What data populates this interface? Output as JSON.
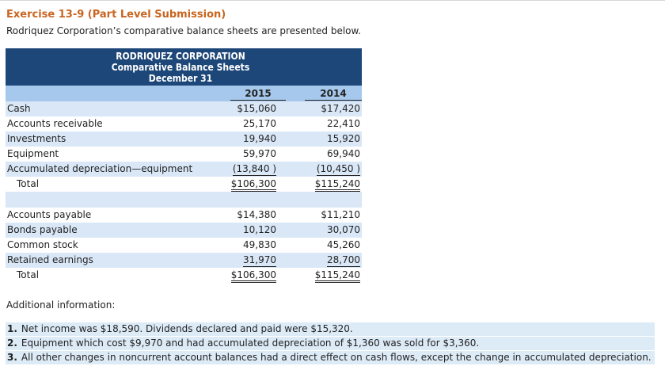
{
  "exercise_title": "Exercise 13-9 (Part Level Submission)",
  "intro": "Rodriquez Corporation’s comparative balance sheets are presented below.",
  "balance_sheet": {
    "company": "RODRIQUEZ CORPORATION",
    "statement": "Comparative Balance Sheets",
    "date": "December 31",
    "years": [
      "2015",
      "2014"
    ],
    "assets": [
      {
        "label": "Cash",
        "v2015": "$15,060",
        "v2014": "$17,420"
      },
      {
        "label": "Accounts receivable",
        "v2015": "25,170",
        "v2014": "22,410"
      },
      {
        "label": "Investments",
        "v2015": "19,940",
        "v2014": "15,920"
      },
      {
        "label": "Equipment",
        "v2015": "59,970",
        "v2014": "69,940"
      },
      {
        "label": "Accumulated depreciation—equipment",
        "v2015": "(13,840 )",
        "v2014": "(10,450 )"
      }
    ],
    "assets_total": {
      "label": "Total",
      "v2015": "$106,300",
      "v2014": "$115,240"
    },
    "liabilities": [
      {
        "label": "Accounts payable",
        "v2015": "$14,380",
        "v2014": "$11,210"
      },
      {
        "label": "Bonds payable",
        "v2015": "10,120",
        "v2014": "30,070"
      },
      {
        "label": "Common stock",
        "v2015": "49,830",
        "v2014": "45,260"
      },
      {
        "label": "Retained earnings",
        "v2015": "31,970",
        "v2014": "28,700"
      }
    ],
    "liabilities_total": {
      "label": "Total",
      "v2015": "$106,300",
      "v2014": "$115,240"
    }
  },
  "additional_heading": "Additional information:",
  "notes": [
    {
      "num": "1.",
      "text": "Net income was $18,590. Dividends declared and paid were $15,320."
    },
    {
      "num": "2.",
      "text": "Equipment which cost $9,970 and had accumulated depreciation of $1,360 was sold for $3,360."
    },
    {
      "num": "3.",
      "text": "All other changes in noncurrent account balances had a direct effect on cash flows, except the change in accumulated depreciation."
    }
  ]
}
